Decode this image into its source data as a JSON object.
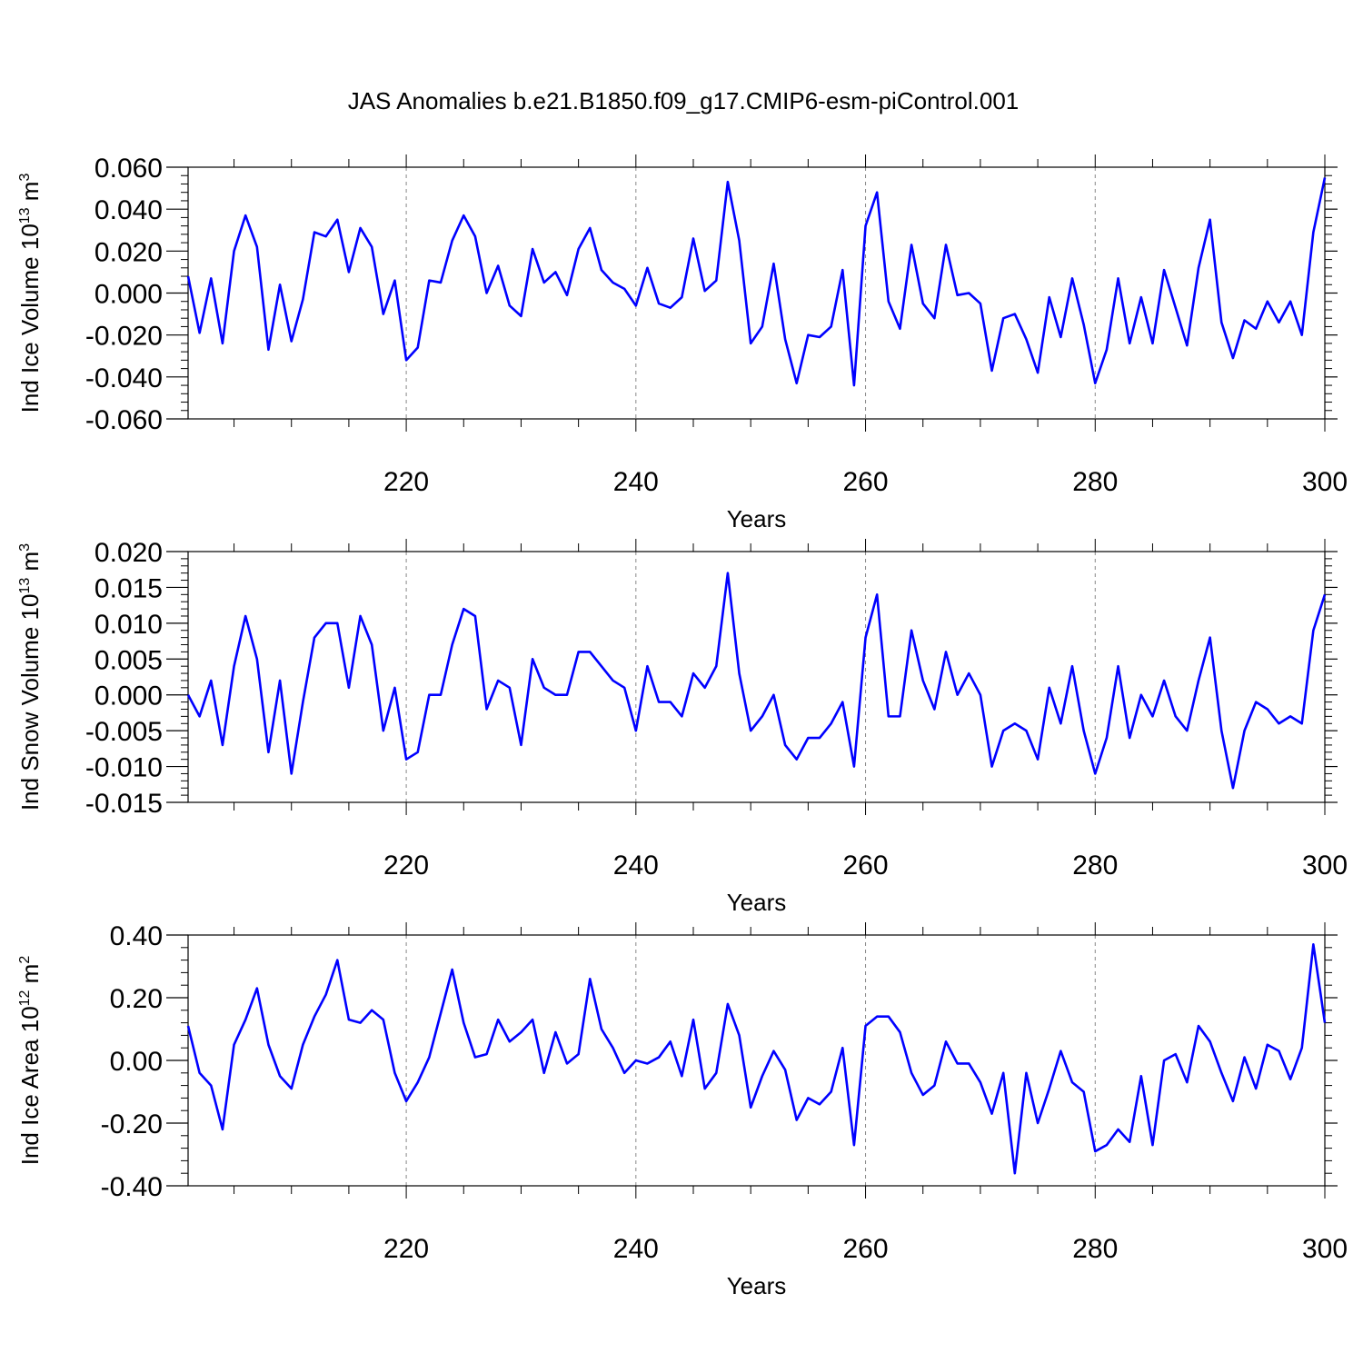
{
  "title": "JAS Anomalies b.e21.B1850.f09_g17.CMIP6-esm-piControl.001",
  "line_color": "#0000ff",
  "chart_data": [
    {
      "type": "line",
      "ylabel": "Ind Ice Volume",
      "yunit_base": "10",
      "yunit_exp": "13",
      "yunit_tail": " m",
      "yunit_tail_exp": "3",
      "xlabel": "Years",
      "xlim": [
        201,
        300
      ],
      "ylim": [
        -0.06,
        0.06
      ],
      "xticks": [
        220,
        240,
        260,
        280,
        300
      ],
      "yticks": [
        "0.060",
        "0.040",
        "0.020",
        "0.000",
        "-0.020",
        "-0.040",
        "-0.060"
      ],
      "ytick_values": [
        0.06,
        0.04,
        0.02,
        0.0,
        -0.02,
        -0.04,
        -0.06
      ],
      "grid_x": [
        220,
        240,
        260,
        280
      ],
      "x_start": 201,
      "values": [
        0.008,
        -0.019,
        0.007,
        -0.024,
        0.02,
        0.037,
        0.022,
        -0.027,
        0.004,
        -0.023,
        -0.003,
        0.029,
        0.027,
        0.035,
        0.01,
        0.031,
        0.022,
        -0.01,
        0.006,
        -0.032,
        -0.026,
        0.006,
        0.005,
        0.025,
        0.037,
        0.027,
        0.0,
        0.013,
        -0.006,
        -0.011,
        0.021,
        0.005,
        0.01,
        -0.001,
        0.021,
        0.031,
        0.011,
        0.005,
        0.002,
        -0.006,
        0.012,
        -0.005,
        -0.007,
        -0.002,
        0.026,
        0.001,
        0.006,
        0.053,
        0.025,
        -0.024,
        -0.016,
        0.014,
        -0.022,
        -0.043,
        -0.02,
        -0.021,
        -0.016,
        0.011,
        -0.044,
        0.032,
        0.048,
        -0.004,
        -0.017,
        0.023,
        -0.005,
        -0.012,
        0.023,
        -0.001,
        0.0,
        -0.005,
        -0.037,
        -0.012,
        -0.01,
        -0.022,
        -0.038,
        -0.002,
        -0.021,
        0.007,
        -0.015,
        -0.043,
        -0.027,
        0.007,
        -0.024,
        -0.002,
        -0.024,
        0.011,
        -0.007,
        -0.025,
        0.012,
        0.035,
        -0.014,
        -0.031,
        -0.013,
        -0.017,
        -0.004,
        -0.014,
        -0.004,
        -0.02,
        0.029,
        0.055
      ]
    },
    {
      "type": "line",
      "ylabel": "Ind Snow Volume",
      "yunit_base": "10",
      "yunit_exp": "13",
      "yunit_tail": " m",
      "yunit_tail_exp": "3",
      "xlabel": "Years",
      "xlim": [
        201,
        300
      ],
      "ylim": [
        -0.015,
        0.02
      ],
      "xticks": [
        220,
        240,
        260,
        280,
        300
      ],
      "yticks": [
        "0.020",
        "0.015",
        "0.010",
        "0.005",
        "0.000",
        "-0.005",
        "-0.010",
        "-0.015"
      ],
      "ytick_values": [
        0.02,
        0.015,
        0.01,
        0.005,
        0.0,
        -0.005,
        -0.01,
        -0.015
      ],
      "grid_x": [
        220,
        240,
        260,
        280
      ],
      "x_start": 201,
      "values": [
        0.0,
        -0.003,
        0.002,
        -0.007,
        0.004,
        0.011,
        0.005,
        -0.008,
        0.002,
        -0.011,
        -0.001,
        0.008,
        0.01,
        0.01,
        0.001,
        0.011,
        0.007,
        -0.005,
        0.001,
        -0.009,
        -0.008,
        0.0,
        0.0,
        0.007,
        0.012,
        0.011,
        -0.002,
        0.002,
        0.001,
        -0.007,
        0.005,
        0.001,
        0.0,
        0.0,
        0.006,
        0.006,
        0.004,
        0.002,
        0.001,
        -0.005,
        0.004,
        -0.001,
        -0.001,
        -0.003,
        0.003,
        0.001,
        0.004,
        0.017,
        0.003,
        -0.005,
        -0.003,
        0.0,
        -0.007,
        -0.009,
        -0.006,
        -0.006,
        -0.004,
        -0.001,
        -0.01,
        0.008,
        0.014,
        -0.003,
        -0.003,
        0.009,
        0.002,
        -0.002,
        0.006,
        0.0,
        0.003,
        0.0,
        -0.01,
        -0.005,
        -0.004,
        -0.005,
        -0.009,
        0.001,
        -0.004,
        0.004,
        -0.005,
        -0.011,
        -0.006,
        0.004,
        -0.006,
        0.0,
        -0.003,
        0.002,
        -0.003,
        -0.005,
        0.002,
        0.008,
        -0.005,
        -0.013,
        -0.005,
        -0.001,
        -0.002,
        -0.004,
        -0.003,
        -0.004,
        0.009,
        0.014
      ]
    },
    {
      "type": "line",
      "ylabel": "Ind Ice Area",
      "yunit_base": "10",
      "yunit_exp": "12",
      "yunit_tail": " m",
      "yunit_tail_exp": "2",
      "xlabel": "Years",
      "xlim": [
        201,
        300
      ],
      "ylim": [
        -0.4,
        0.4
      ],
      "xticks": [
        220,
        240,
        260,
        280,
        300
      ],
      "yticks": [
        "0.40",
        "0.20",
        "0.00",
        "-0.20",
        "-0.40"
      ],
      "ytick_values": [
        0.4,
        0.2,
        0.0,
        -0.2,
        -0.4
      ],
      "grid_x": [
        220,
        240,
        260,
        280
      ],
      "x_start": 201,
      "values": [
        0.11,
        -0.04,
        -0.08,
        -0.22,
        0.05,
        0.13,
        0.23,
        0.05,
        -0.05,
        -0.09,
        0.05,
        0.14,
        0.21,
        0.32,
        0.13,
        0.12,
        0.16,
        0.13,
        -0.04,
        -0.13,
        -0.07,
        0.01,
        0.15,
        0.29,
        0.12,
        0.01,
        0.02,
        0.13,
        0.06,
        0.09,
        0.13,
        -0.04,
        0.09,
        -0.01,
        0.02,
        0.26,
        0.1,
        0.04,
        -0.04,
        0.0,
        -0.01,
        0.01,
        0.06,
        -0.05,
        0.13,
        -0.09,
        -0.04,
        0.18,
        0.08,
        -0.15,
        -0.05,
        0.03,
        -0.03,
        -0.19,
        -0.12,
        -0.14,
        -0.1,
        0.04,
        -0.27,
        0.11,
        0.14,
        0.14,
        0.09,
        -0.04,
        -0.11,
        -0.08,
        0.06,
        -0.01,
        -0.01,
        -0.07,
        -0.17,
        -0.04,
        -0.36,
        -0.04,
        -0.2,
        -0.09,
        0.03,
        -0.07,
        -0.1,
        -0.29,
        -0.27,
        -0.22,
        -0.26,
        -0.05,
        -0.27,
        0.0,
        0.02,
        -0.07,
        0.11,
        0.06,
        -0.04,
        -0.13,
        0.01,
        -0.09,
        0.05,
        0.03,
        -0.06,
        0.04,
        0.37,
        0.12
      ]
    }
  ]
}
